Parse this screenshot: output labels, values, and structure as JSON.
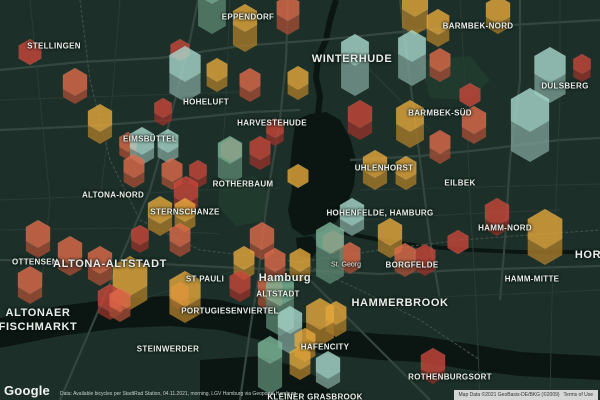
{
  "map": {
    "labels": [
      {
        "text": "EPPENDORF",
        "size": "mid"
      },
      {
        "text": "STELLINGEN",
        "size": "mid"
      },
      {
        "text": "WINTERHUDE",
        "size": "big"
      },
      {
        "text": "BARMBEK-NORD",
        "size": "mid"
      },
      {
        "text": "BARMBEK-SÜD",
        "size": "mid"
      },
      {
        "text": "DULSBERG",
        "size": "mid"
      },
      {
        "text": "HOHELUFT",
        "size": "mid"
      },
      {
        "text": "HARVESTEHUDE",
        "size": "mid"
      },
      {
        "text": "EIMSBÜTTEL",
        "size": "mid"
      },
      {
        "text": "UHLENHORST",
        "size": "mid"
      },
      {
        "text": "EILBEK",
        "size": "mid"
      },
      {
        "text": "ALTONA-NORD",
        "size": "mid"
      },
      {
        "text": "ROTHERBAUM",
        "size": "mid"
      },
      {
        "text": "HOHENFELDE, HAMBURG",
        "size": "mid"
      },
      {
        "text": "HAMM-NORD",
        "size": "mid"
      },
      {
        "text": "STERNSCHANZE",
        "size": "mid"
      },
      {
        "text": "OTTENSEN",
        "size": "mid"
      },
      {
        "text": "ALTONA-ALTSTADT",
        "size": "big"
      },
      {
        "text": "ST PAULI",
        "size": "mid"
      },
      {
        "text": "Hamburg",
        "size": "big"
      },
      {
        "text": "St. Georg",
        "size": "small"
      },
      {
        "text": "BORGFELDE",
        "size": "mid"
      },
      {
        "text": "HOR",
        "size": "big"
      },
      {
        "text": "HAMM-MITTE",
        "size": "mid"
      },
      {
        "text": "ALTSTADT",
        "size": "mid"
      },
      {
        "text": "HAMMERBROOK",
        "size": "big"
      },
      {
        "text": "ALTONAER",
        "size": "big"
      },
      {
        "text": "FISCHMARKT",
        "size": "big"
      },
      {
        "text": "PORTUGIESENVIERTEL",
        "size": "mid"
      },
      {
        "text": "HAFENCITY",
        "size": "mid"
      },
      {
        "text": "STEINWERDER",
        "size": "mid"
      },
      {
        "text": "ROTHENBURGSORT",
        "size": "mid"
      },
      {
        "text": "KLEINER GRASBROOK",
        "size": "mid"
      }
    ],
    "colors": {
      "land": "#1c2f28",
      "water": "#0b1612",
      "park": "#203a2d",
      "road_major": "#34473f",
      "road_minor": "#2a3c35",
      "rail": "#3d4f47",
      "hex_palette": [
        "#c9463a",
        "#e06a49",
        "#f08c4e",
        "#e6a83b",
        "#a8d8cc",
        "#7db89a"
      ],
      "hex_stroke": "rgba(255,255,255,0.08)"
    },
    "hex_layer": {
      "style": "3D extruded hexagon columns",
      "opacity": 0.8
    }
  },
  "logo": {
    "text": "Google",
    "icon": "google-logo"
  },
  "attribution": {
    "source": "Data: Available bicycles per StadtRad Station, 04.11.2021, morning, LGV Hamburg via Geoportal Hamburg",
    "map_data": "Map Data ©2021 GeoBasis-DE/BKG (©2009)",
    "terms": "Terms of Use"
  }
}
